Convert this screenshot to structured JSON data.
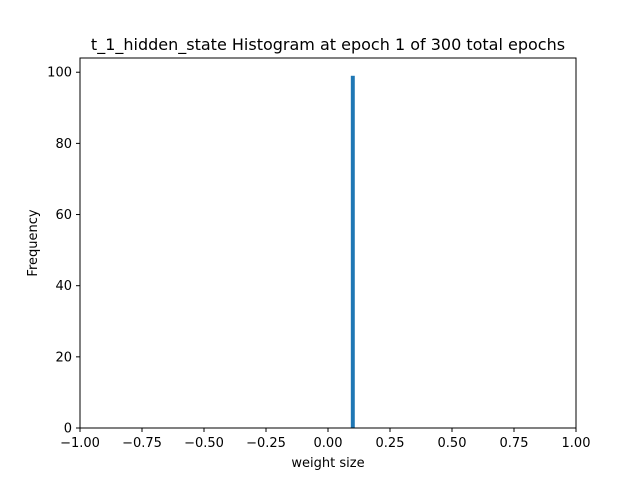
{
  "chart_data": {
    "type": "bar",
    "title": "t_1_hidden_state Histogram at epoch 1 of 300 total epochs",
    "xlabel": "weight size",
    "ylabel": "Frequency",
    "xlim": [
      -1.0,
      1.0
    ],
    "ylim": [
      0,
      104
    ],
    "xticks": [
      -1.0,
      -0.75,
      -0.5,
      -0.25,
      0.0,
      0.25,
      0.5,
      0.75,
      1.0
    ],
    "xtick_labels": [
      "−1.00",
      "−0.75",
      "−0.50",
      "−0.25",
      "0.00",
      "0.25",
      "0.50",
      "0.75",
      "1.00"
    ],
    "yticks": [
      0,
      20,
      40,
      60,
      80,
      100
    ],
    "ytick_labels": [
      "0",
      "20",
      "40",
      "60",
      "80",
      "100"
    ],
    "bins": [
      {
        "x0": 0.092,
        "x1": 0.108,
        "count": 99
      }
    ],
    "bar_color": "#1f77b4",
    "grid": false,
    "legend": "none"
  }
}
